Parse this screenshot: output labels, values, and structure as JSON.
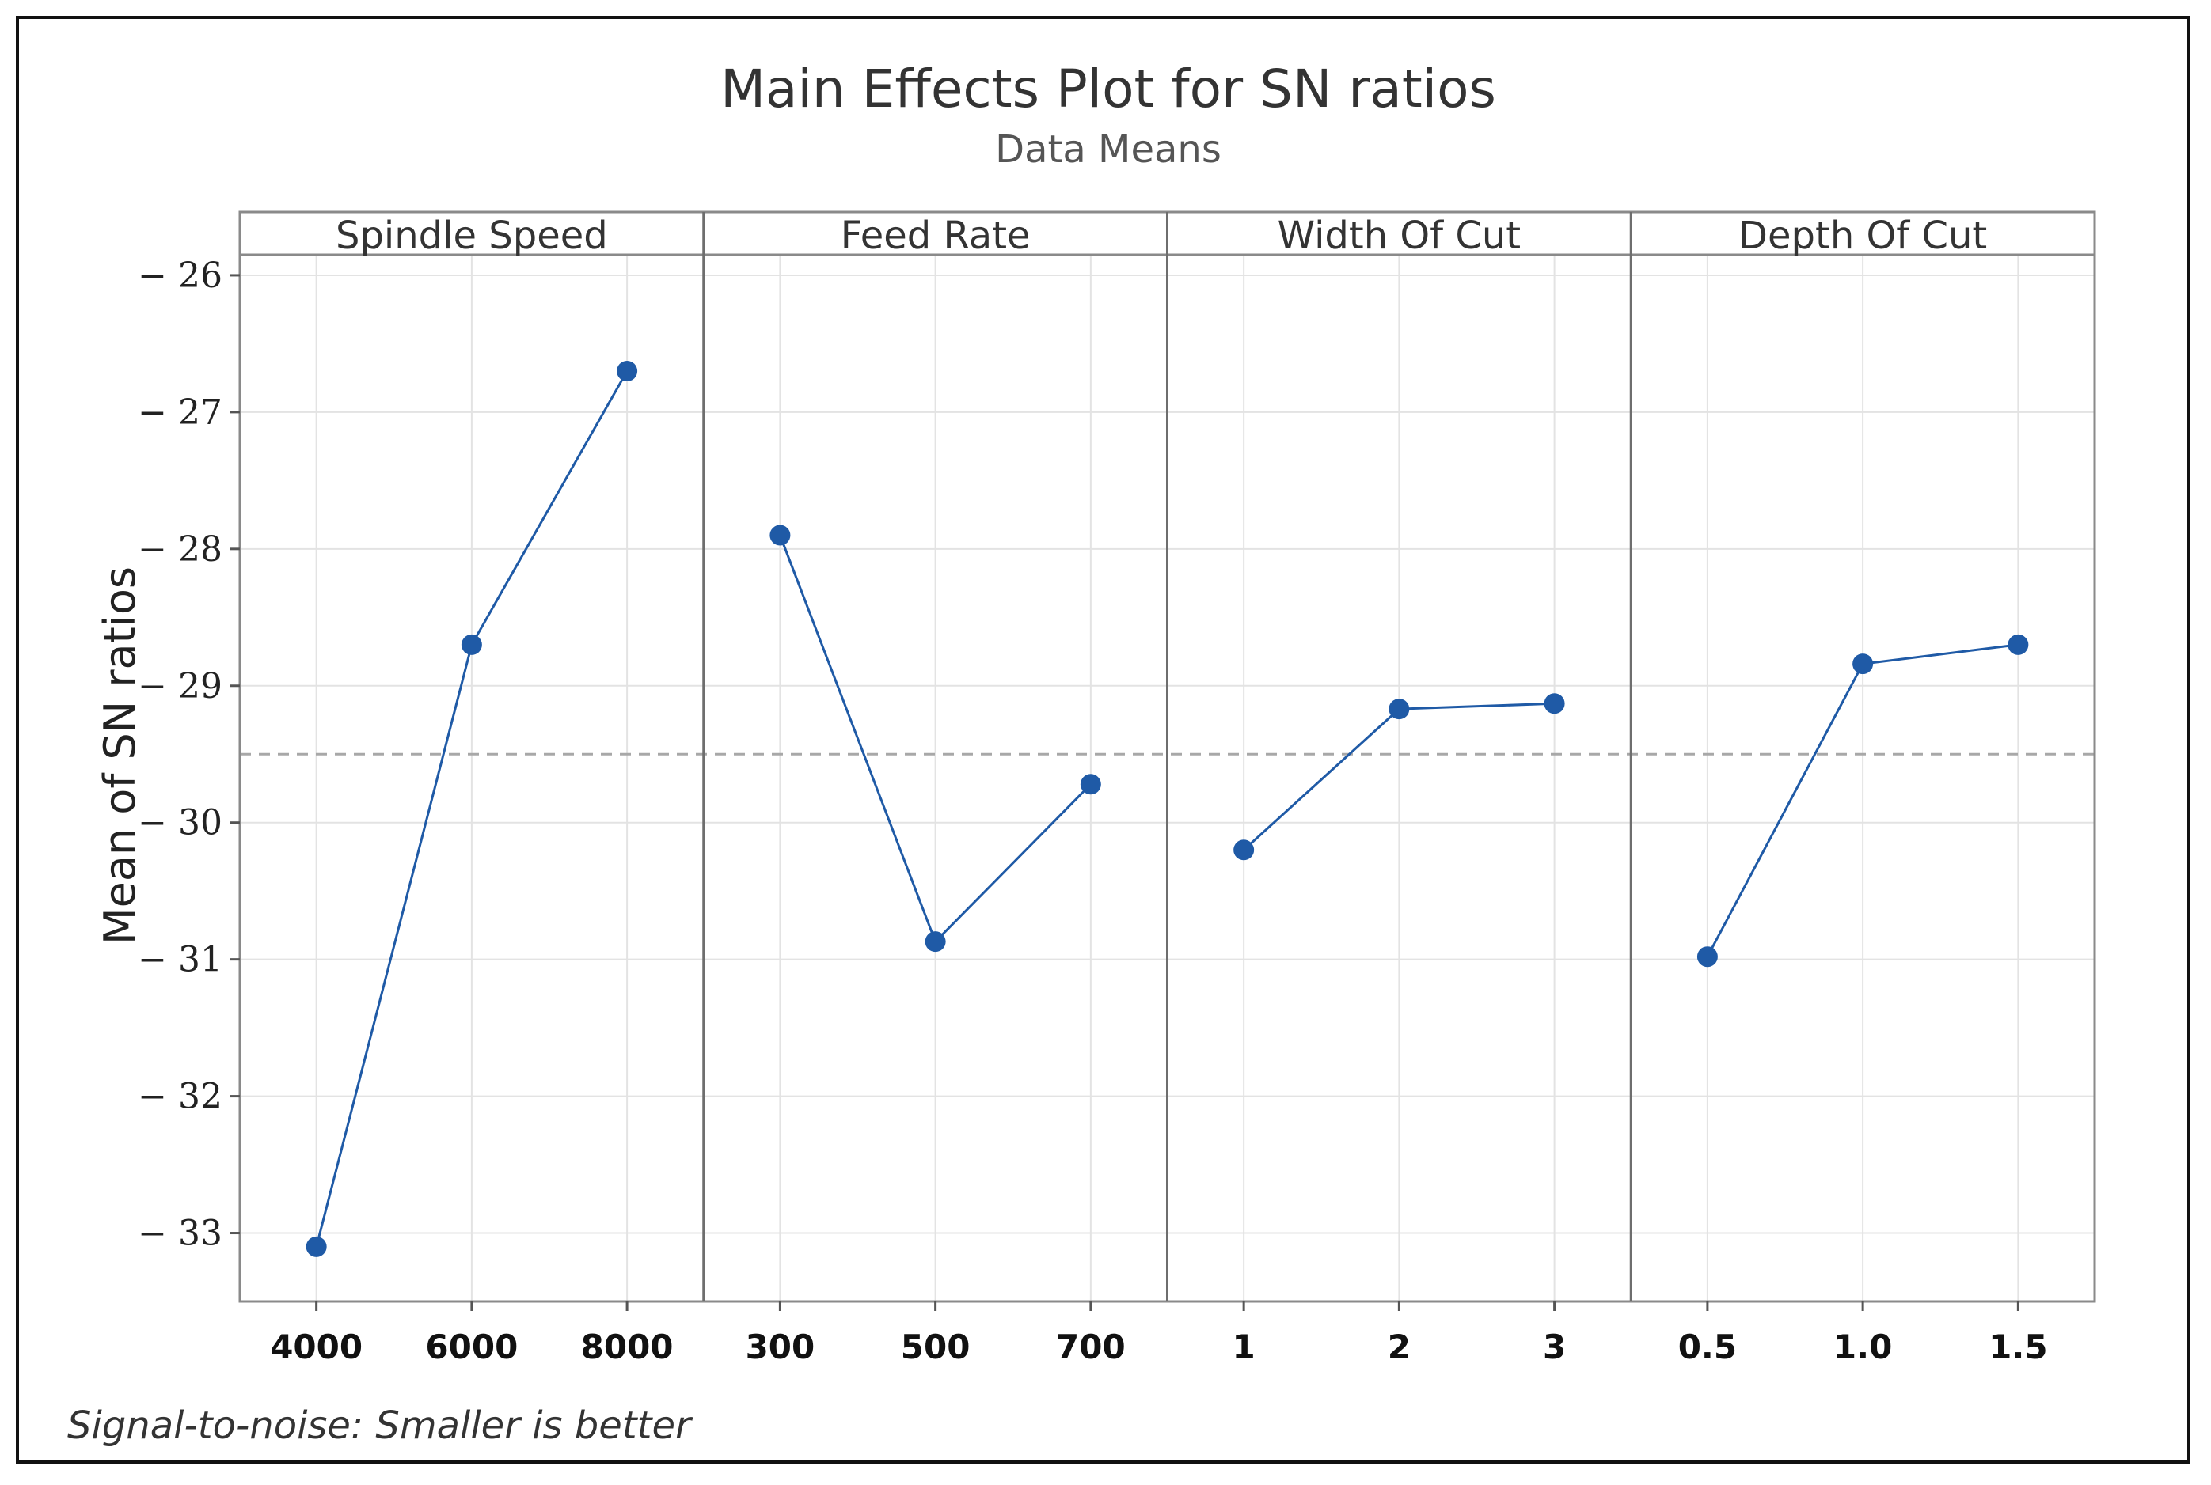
{
  "chart_data": {
    "type": "line",
    "title": "Main Effects Plot for SN ratios",
    "subtitle": "Data Means",
    "ylabel": "Mean of SN ratios",
    "footnote": "Signal-to-noise: Smaller is better",
    "ylim": [
      -33.5,
      -25.85
    ],
    "yticks": [
      -26,
      -27,
      -28,
      -29,
      -30,
      -31,
      -32,
      -33
    ],
    "ytick_labels": [
      "− 26",
      "− 27",
      "− 28",
      "− 29",
      "− 30",
      "− 31",
      "− 32",
      "− 33"
    ],
    "reference_line": -29.5,
    "grid": true,
    "series_color": "#1f5aa6",
    "panels": [
      {
        "name": "Spindle Speed",
        "x": [
          "4000",
          "6000",
          "8000"
        ],
        "values": [
          -33.1,
          -28.7,
          -26.7
        ]
      },
      {
        "name": "Feed Rate",
        "x": [
          "300",
          "500",
          "700"
        ],
        "values": [
          -27.9,
          -30.87,
          -29.72
        ]
      },
      {
        "name": "Width Of Cut",
        "x": [
          "1",
          "2",
          "3"
        ],
        "values": [
          -30.2,
          -29.17,
          -29.13
        ]
      },
      {
        "name": "Depth Of Cut",
        "x": [
          "0.5",
          "1.0",
          "1.5"
        ],
        "values": [
          -30.98,
          -28.84,
          -28.7
        ]
      }
    ]
  }
}
